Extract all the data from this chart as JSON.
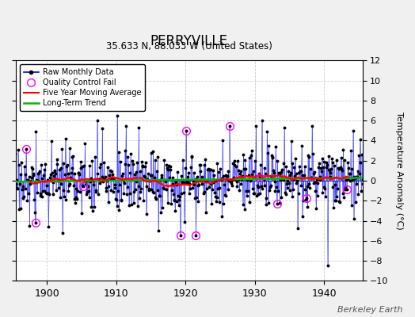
{
  "title": "PERRYVILLE",
  "subtitle": "35.633 N, 88.033 W (United States)",
  "ylabel": "Temperature Anomaly (°C)",
  "credit": "Berkeley Earth",
  "year_start": 1895,
  "year_end": 1946,
  "ylim": [
    -10,
    12
  ],
  "yticks": [
    -10,
    -8,
    -6,
    -4,
    -2,
    0,
    2,
    4,
    6,
    8,
    10,
    12
  ],
  "xticks": [
    1900,
    1910,
    1920,
    1930,
    1940
  ],
  "bg_color": "#f0f0f0",
  "plot_bg_color": "#ffffff",
  "raw_color": "#0000ff",
  "qc_color": "#ff00ff",
  "moving_avg_color": "#ff0000",
  "trend_color": "#00bb00",
  "grid_color": "#cccccc",
  "seed": 17
}
